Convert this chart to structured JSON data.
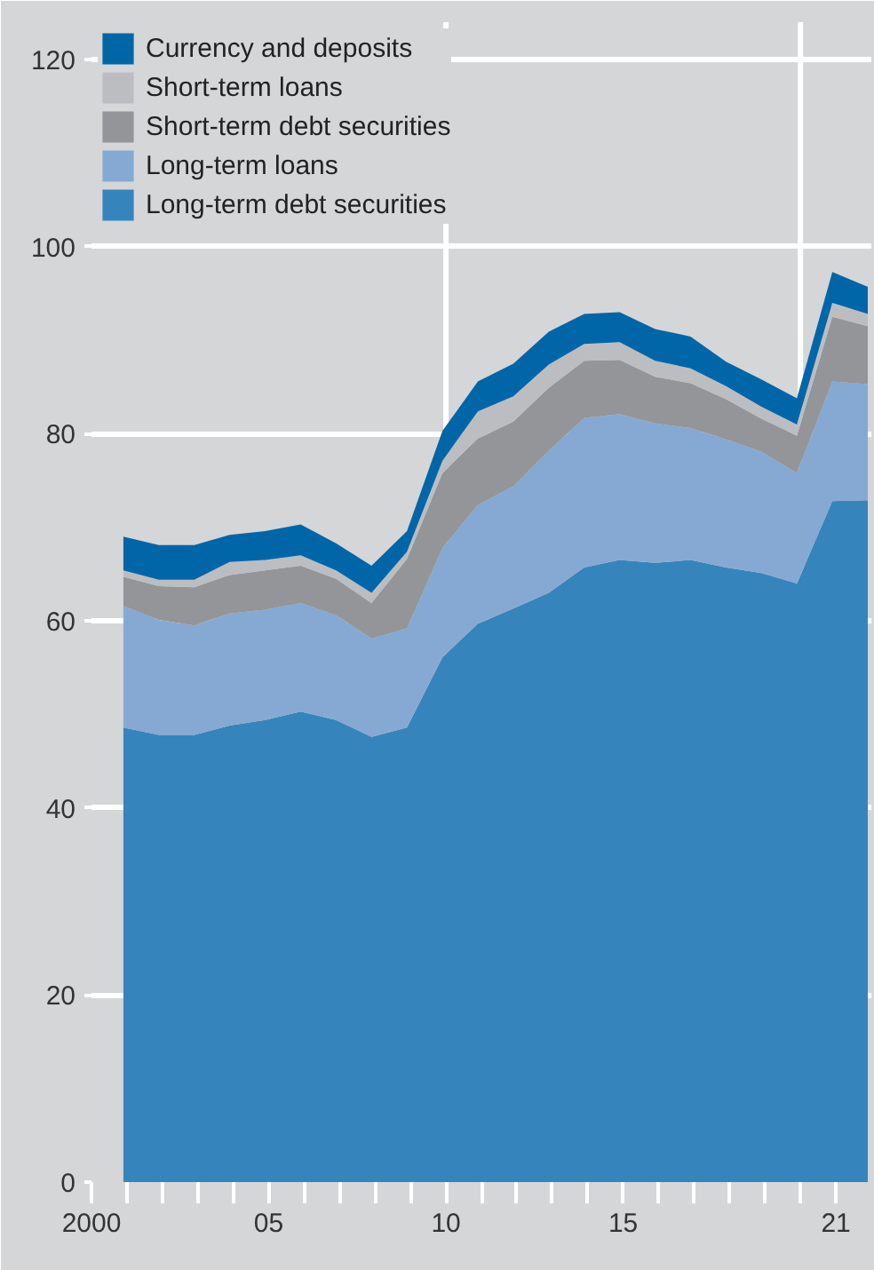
{
  "chart_data": {
    "type": "area",
    "stacked": true,
    "x": [
      2000.9,
      2001.9,
      2002.9,
      2003.9,
      2004.9,
      2005.9,
      2006.9,
      2007.9,
      2008.9,
      2009.9,
      2010.9,
      2011.9,
      2012.9,
      2013.9,
      2014.9,
      2015.9,
      2016.9,
      2017.9,
      2018.9,
      2019.9,
      2020.9,
      2021.9
    ],
    "series": [
      {
        "name": "Long-term debt securities",
        "color": "#3684bc",
        "values": [
          48.6,
          47.8,
          47.8,
          48.8,
          49.4,
          50.3,
          49.4,
          47.6,
          48.6,
          56.1,
          59.7,
          61.3,
          63.0,
          65.7,
          66.5,
          66.2,
          66.5,
          65.7,
          65.1,
          64.0,
          72.8,
          72.9
        ]
      },
      {
        "name": "Long-term loans",
        "color": "#86a9d3",
        "values": [
          13.0,
          12.3,
          11.7,
          12.0,
          11.8,
          11.6,
          11.2,
          10.5,
          10.6,
          11.7,
          12.7,
          13.1,
          15.2,
          16.0,
          15.6,
          14.9,
          14.1,
          13.7,
          13.0,
          11.8,
          12.8,
          12.4
        ]
      },
      {
        "name": "Short-term debt securities",
        "color": "#939598",
        "values": [
          3.1,
          3.6,
          4.1,
          4.1,
          4.2,
          4.0,
          3.9,
          3.8,
          7.4,
          8.0,
          7.1,
          6.9,
          6.7,
          6.1,
          5.8,
          5.0,
          4.8,
          4.3,
          3.5,
          4.0,
          6.9,
          6.2
        ]
      },
      {
        "name": "Short-term loans",
        "color": "#bcbdc1",
        "values": [
          0.7,
          0.7,
          0.8,
          1.4,
          1.1,
          1.1,
          0.9,
          1.1,
          0.8,
          1.3,
          2.9,
          2.7,
          2.5,
          1.8,
          1.9,
          1.7,
          1.6,
          1.4,
          1.3,
          1.2,
          1.5,
          1.3
        ]
      },
      {
        "name": "Currency and deposits",
        "color": "#0066a8",
        "values": [
          3.6,
          3.7,
          3.7,
          2.9,
          3.1,
          3.3,
          2.9,
          2.9,
          2.2,
          3.2,
          3.2,
          3.5,
          3.5,
          3.2,
          3.2,
          3.4,
          3.4,
          2.6,
          2.9,
          2.8,
          3.3,
          2.9
        ]
      }
    ],
    "xlim": [
      2000,
      2022
    ],
    "xticks": [
      {
        "value": 2000,
        "label": "2000"
      },
      {
        "value": 2001,
        "label": null
      },
      {
        "value": 2002,
        "label": null
      },
      {
        "value": 2003,
        "label": null
      },
      {
        "value": 2004,
        "label": null
      },
      {
        "value": 2005,
        "label": "05"
      },
      {
        "value": 2006,
        "label": null
      },
      {
        "value": 2007,
        "label": null
      },
      {
        "value": 2008,
        "label": null
      },
      {
        "value": 2009,
        "label": null
      },
      {
        "value": 2010,
        "label": "10"
      },
      {
        "value": 2011,
        "label": null
      },
      {
        "value": 2012,
        "label": null
      },
      {
        "value": 2013,
        "label": null
      },
      {
        "value": 2014,
        "label": null
      },
      {
        "value": 2015,
        "label": "15"
      },
      {
        "value": 2016,
        "label": null
      },
      {
        "value": 2017,
        "label": null
      },
      {
        "value": 2018,
        "label": null
      },
      {
        "value": 2019,
        "label": null
      },
      {
        "value": 2020,
        "label": null
      },
      {
        "value": 2021,
        "label": "21"
      }
    ],
    "ylim": [
      0,
      124
    ],
    "yticks": [
      0,
      20,
      40,
      60,
      80,
      100,
      120
    ],
    "grid": "y",
    "legend": "top left",
    "ref_lines": [
      {
        "axis": "x",
        "value": 2010,
        "color": "#ffffff"
      },
      {
        "axis": "x",
        "value": 2020,
        "color": "#ffffff"
      }
    ]
  }
}
